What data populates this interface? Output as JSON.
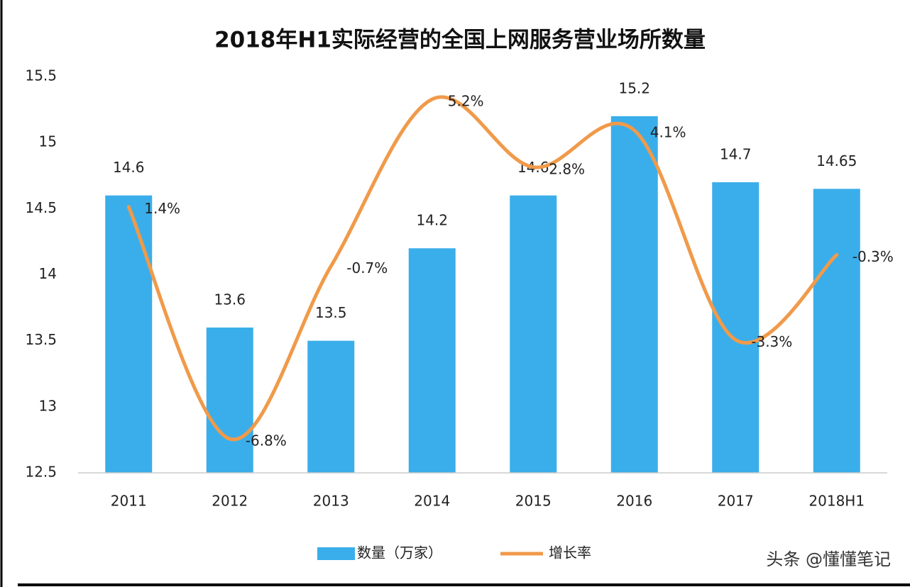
{
  "chart_data": {
    "type": "bar-line",
    "title": "2018年H1实际经营的全国上网服务营业场所数量",
    "categories": [
      "2011",
      "2012",
      "2013",
      "2014",
      "2015",
      "2016",
      "2017",
      "2018H1"
    ],
    "series": [
      {
        "name": "数量（万家）",
        "type": "bar",
        "color": "#3aaeea",
        "values": [
          14.6,
          13.6,
          13.5,
          14.2,
          14.6,
          15.2,
          14.7,
          14.65
        ]
      },
      {
        "name": "增长率",
        "type": "line",
        "axis": "y2",
        "color": "#f09a4a",
        "smooth": true,
        "values": [
          1.4,
          -6.8,
          -0.7,
          5.2,
          2.8,
          4.1,
          -3.3,
          -0.3
        ],
        "value_labels": [
          "1.4%",
          "-6.8%",
          "-0.7%",
          "5.2%",
          "2.8%",
          "4.1%",
          "-3.3%",
          "-0.3%"
        ]
      }
    ],
    "ylim": [
      12.5,
      15.5
    ],
    "yticks": [
      12.5,
      13,
      13.5,
      14,
      14.5,
      15,
      15.5
    ],
    "y2lim": [
      -8,
      6
    ],
    "grid": false,
    "legend": "bottom",
    "watermark": "头条 @懂懂笔记"
  }
}
